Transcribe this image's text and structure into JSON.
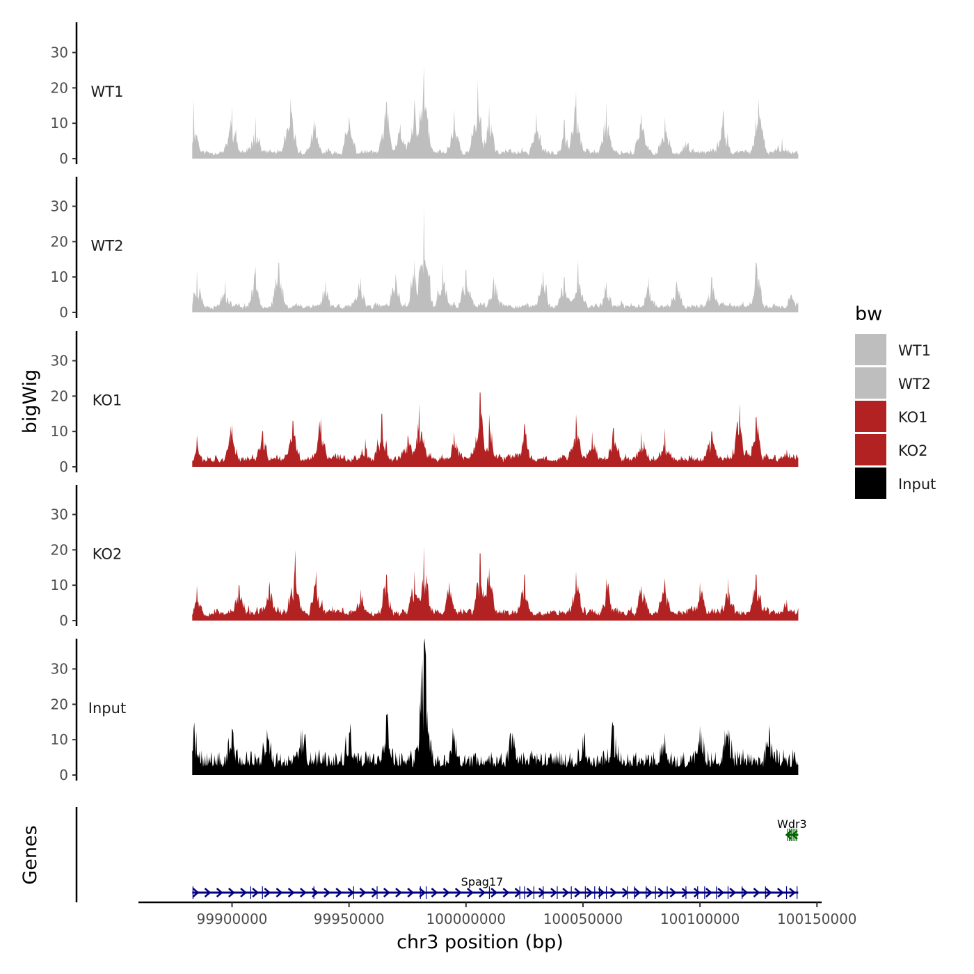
{
  "chart_data": {
    "type": "area",
    "ylabel": "bigWig",
    "xlabel": "chr3 position (bp)",
    "xlim": [
      99860000,
      100152000
    ],
    "data_range": [
      99883000,
      100142000
    ],
    "ylim": [
      0,
      38
    ],
    "yticks": [
      0,
      10,
      20,
      30
    ],
    "xticks": [
      99900000,
      99950000,
      100000000,
      100050000,
      100100000,
      100150000
    ],
    "xtick_labels": [
      "99900000",
      "99950000",
      "100000000",
      "100050000",
      "100100000",
      "100150000"
    ],
    "tracks": [
      {
        "name": "WT1",
        "color": "#bebebe",
        "base": 3,
        "seed": 11,
        "peaks": [
          [
            99883500,
            17
          ],
          [
            99900000,
            15
          ],
          [
            99910000,
            12
          ],
          [
            99925000,
            17
          ],
          [
            99935000,
            11
          ],
          [
            99950000,
            12
          ],
          [
            99966000,
            16
          ],
          [
            99972000,
            10
          ],
          [
            99978000,
            17
          ],
          [
            99982000,
            26
          ],
          [
            99995000,
            14
          ],
          [
            100005000,
            22
          ],
          [
            100010000,
            15
          ],
          [
            100030000,
            13
          ],
          [
            100042000,
            11
          ],
          [
            100047000,
            19
          ],
          [
            100060000,
            16
          ],
          [
            100075000,
            13
          ],
          [
            100085000,
            12
          ],
          [
            100094000,
            5
          ],
          [
            100110000,
            14
          ],
          [
            100125000,
            17
          ],
          [
            100135000,
            6
          ]
        ]
      },
      {
        "name": "WT2",
        "color": "#bebebe",
        "base": 3,
        "seed": 23,
        "peaks": [
          [
            99885000,
            12
          ],
          [
            99897000,
            9
          ],
          [
            99910000,
            13
          ],
          [
            99920000,
            14
          ],
          [
            99940000,
            9
          ],
          [
            99955000,
            10
          ],
          [
            99970000,
            11
          ],
          [
            99978000,
            15
          ],
          [
            99982000,
            30
          ],
          [
            99990000,
            14
          ],
          [
            100000000,
            12
          ],
          [
            100012000,
            10
          ],
          [
            100033000,
            12
          ],
          [
            100042000,
            10
          ],
          [
            100048000,
            15
          ],
          [
            100060000,
            9
          ],
          [
            100078000,
            10
          ],
          [
            100090000,
            9
          ],
          [
            100105000,
            10
          ],
          [
            100124000,
            14
          ],
          [
            100139000,
            5
          ]
        ]
      },
      {
        "name": "KO1",
        "color": "#b22222",
        "base": 4,
        "seed": 37,
        "peaks": [
          [
            99885000,
            9
          ],
          [
            99900000,
            12
          ],
          [
            99913000,
            10
          ],
          [
            99926000,
            13
          ],
          [
            99938000,
            14
          ],
          [
            99957000,
            8
          ],
          [
            99964000,
            15
          ],
          [
            99975000,
            9
          ],
          [
            99980000,
            18
          ],
          [
            99995000,
            10
          ],
          [
            100006000,
            21
          ],
          [
            100010000,
            15
          ],
          [
            100025000,
            12
          ],
          [
            100047000,
            15
          ],
          [
            100054000,
            10
          ],
          [
            100063000,
            11
          ],
          [
            100075000,
            10
          ],
          [
            100085000,
            11
          ],
          [
            100105000,
            10
          ],
          [
            100117000,
            18
          ],
          [
            100124000,
            14
          ],
          [
            100137000,
            5
          ]
        ]
      },
      {
        "name": "KO2",
        "color": "#b22222",
        "base": 4,
        "seed": 53,
        "peaks": [
          [
            99885000,
            10
          ],
          [
            99903000,
            10
          ],
          [
            99916000,
            11
          ],
          [
            99927000,
            20
          ],
          [
            99936000,
            14
          ],
          [
            99955000,
            9
          ],
          [
            99966000,
            13
          ],
          [
            99978000,
            14
          ],
          [
            99982000,
            21
          ],
          [
            99993000,
            11
          ],
          [
            100006000,
            19
          ],
          [
            100010000,
            15
          ],
          [
            100025000,
            13
          ],
          [
            100047000,
            14
          ],
          [
            100060000,
            12
          ],
          [
            100075000,
            10
          ],
          [
            100085000,
            12
          ],
          [
            100100000,
            11
          ],
          [
            100112000,
            12
          ],
          [
            100124000,
            13
          ],
          [
            100137000,
            6
          ]
        ]
      },
      {
        "name": "Input",
        "color": "#000000",
        "base": 6,
        "seed": 71,
        "noisy": true,
        "peaks": [
          [
            99883500,
            13
          ],
          [
            99900000,
            13
          ],
          [
            99915000,
            13
          ],
          [
            99930000,
            13
          ],
          [
            99950000,
            12
          ],
          [
            99966000,
            17
          ],
          [
            99982000,
            37
          ],
          [
            99995000,
            12
          ],
          [
            100020000,
            12
          ],
          [
            100050000,
            11
          ],
          [
            100063000,
            14
          ],
          [
            100085000,
            12
          ],
          [
            100100000,
            14
          ],
          [
            100112000,
            13
          ],
          [
            100130000,
            12
          ]
        ]
      }
    ],
    "legend": {
      "title": "bw",
      "entries": [
        {
          "label": "WT1",
          "color": "#bebebe"
        },
        {
          "label": "WT2",
          "color": "#bebebe"
        },
        {
          "label": "KO1",
          "color": "#b22222"
        },
        {
          "label": "KO2",
          "color": "#b22222"
        },
        {
          "label": "Input",
          "color": "#000000"
        }
      ]
    },
    "genes_panel": {
      "title": "Genes",
      "genes": [
        {
          "name": "Spag17",
          "start": 99883000,
          "end": 100142000,
          "strand": "+",
          "color": "#000080",
          "exons": [
            99883300,
            99908000,
            99913000,
            99935000,
            99952000,
            99962000,
            99980500,
            99983000,
            100010000,
            100023000,
            100025000,
            100029000,
            100033000,
            100039000,
            100045000,
            100051000,
            100055000,
            100057000,
            100060000,
            100069000,
            100072000,
            100077000,
            100081000,
            100086000,
            100094000,
            100099000,
            100102000,
            100107000,
            100112000,
            100118000,
            100128000,
            100137000,
            100141500
          ]
        },
        {
          "name": "Wdr3",
          "start": 100137000,
          "end": 100142000,
          "strand": "-",
          "color": "#006400",
          "exons": [
            100137500,
            100138200,
            100139000,
            100139800,
            100140600,
            100141300
          ]
        }
      ]
    }
  }
}
